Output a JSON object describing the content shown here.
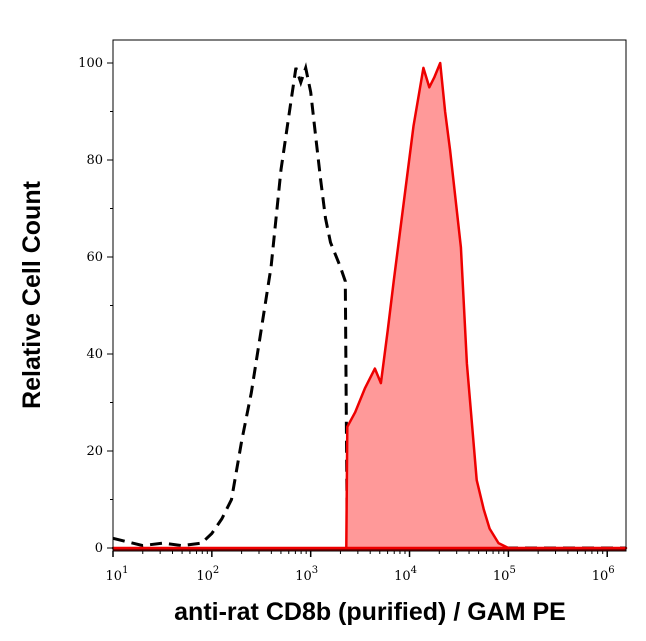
{
  "chart_data": {
    "type": "area",
    "xlabel": "anti-rat CD8b (purified) / GAM PE",
    "ylabel": "Relative Cell Count",
    "xscale": "log",
    "xlim": [
      10,
      1548817
    ],
    "ylim": [
      0,
      104
    ],
    "x_ticks": [
      {
        "base": "10",
        "exp": "1",
        "value": 10
      },
      {
        "base": "10",
        "exp": "2",
        "value": 100
      },
      {
        "base": "10",
        "exp": "3",
        "value": 1000
      },
      {
        "base": "10",
        "exp": "4",
        "value": 10000
      },
      {
        "base": "10",
        "exp": "5",
        "value": 100000
      },
      {
        "base": "10",
        "exp": "6",
        "value": 1000000
      }
    ],
    "y_ticks": [
      "0",
      "20",
      "40",
      "60",
      "80",
      "100"
    ],
    "grid": false,
    "series": [
      {
        "style": "dashed-line",
        "color": "#000000",
        "x": [
          10,
          20,
          32,
          50,
          79,
          100,
          126,
          158,
          200,
          251,
          316,
          398,
          501,
          631,
          708,
          794,
          891,
          1000,
          1122,
          1259,
          1413,
          1585,
          1995,
          2239,
          2344,
          10000,
          1548817
        ],
        "y": [
          2,
          0.5,
          1,
          0.5,
          1,
          3,
          6,
          10,
          22,
          32,
          45,
          58,
          78,
          92,
          99,
          96,
          99,
          94,
          85,
          76,
          68,
          63,
          58,
          55,
          0,
          0,
          0
        ]
      },
      {
        "style": "filled",
        "color": "#ee0000",
        "fill": "#ff9999",
        "x": [
          10,
          2291,
          2344,
          2818,
          3548,
          4467,
          5129,
          6026,
          6918,
          8710,
          10965,
          13804,
          15849,
          17783,
          20417,
          22909,
          25704,
          33113,
          38019,
          47863,
          56234,
          64565,
          79433,
          100000,
          1548817
        ],
        "y": [
          0,
          0,
          25,
          28,
          33,
          37,
          34,
          45,
          55,
          71,
          87,
          99,
          95,
          97,
          100,
          90,
          82,
          62,
          38,
          14,
          8,
          4,
          1,
          0,
          0
        ]
      }
    ]
  }
}
